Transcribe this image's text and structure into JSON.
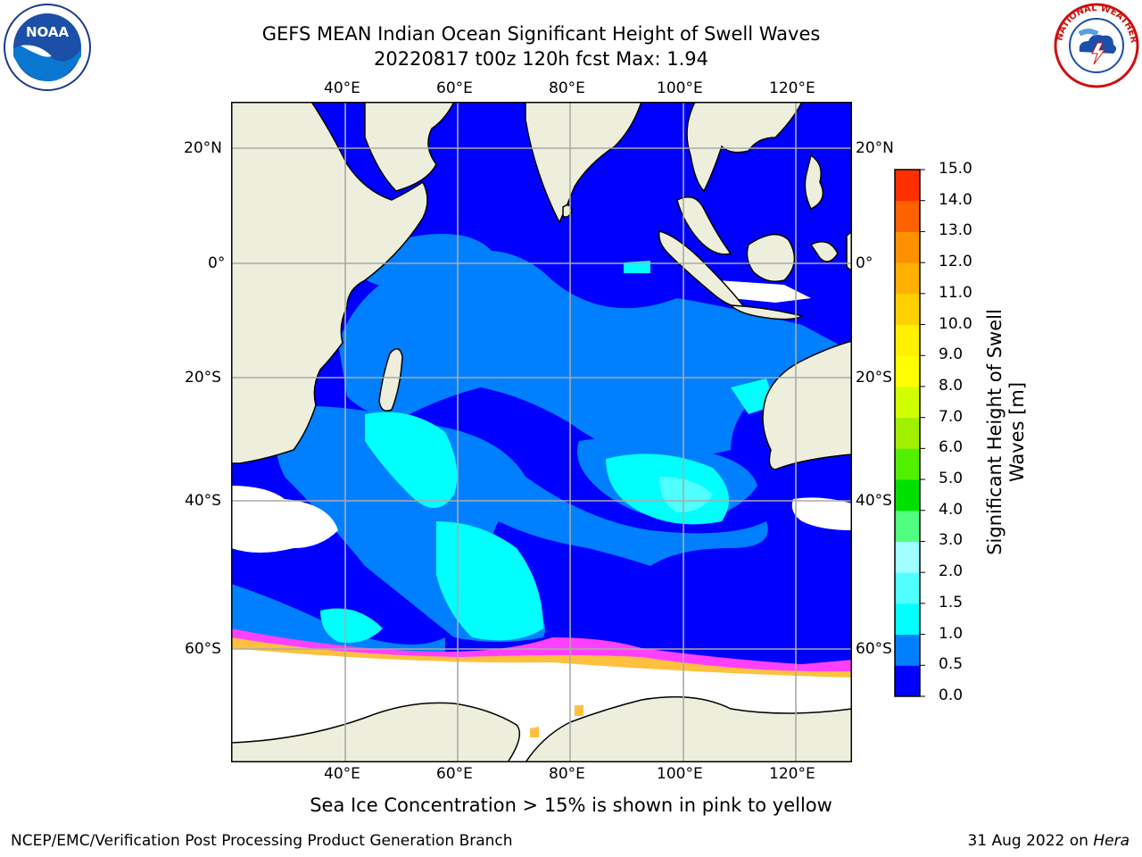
{
  "title": {
    "line1": "GEFS MEAN Indian Ocean Significant Height of Swell Waves",
    "line2": "20220817 t00z 120h fcst   Max: 1.94"
  },
  "axes": {
    "top_lon_ticks": [
      "40°E",
      "60°E",
      "80°E",
      "100°E",
      "120°E"
    ],
    "bottom_lon_ticks": [
      "40°E",
      "60°E",
      "80°E",
      "100°E",
      "120°E"
    ],
    "left_lat_ticks": [
      "20°N",
      "0°",
      "20°S",
      "40°S",
      "60°S"
    ],
    "right_lat_ticks": [
      "20°N",
      "0°",
      "20°S",
      "40°S",
      "60°S"
    ]
  },
  "colorbar": {
    "label_line1": "Significant Height of Swell",
    "label_line2": "Waves [m]",
    "ticks": [
      "0.0",
      "0.5",
      "1.0",
      "1.5",
      "2.0",
      "3.0",
      "4.0",
      "5.0",
      "6.0",
      "7.0",
      "8.0",
      "9.0",
      "10.0",
      "11.0",
      "12.0",
      "13.0",
      "14.0",
      "15.0"
    ],
    "colors": [
      "#0000ff",
      "#0080ff",
      "#00ffff",
      "#50ffff",
      "#a0ffff",
      "#50ff80",
      "#00e000",
      "#50f000",
      "#a0f000",
      "#d0ff00",
      "#ffff00",
      "#fff000",
      "#ffd000",
      "#ffb000",
      "#ff9000",
      "#ff6000",
      "#ff3000",
      "#ff0000"
    ]
  },
  "map_colors": {
    "ocean_deep": "#0000ff",
    "ocean_mid": "#0080ff",
    "ocean_high": "#00ffff",
    "land": "#eeeedc",
    "ice_pink": "#ff40ff",
    "ice_yellow": "#ffc040"
  },
  "logos": {
    "left": "NOAA",
    "right": "NATIONAL WEATHER SERVICE"
  },
  "footer": {
    "note": "Sea Ice Concentration > 15% is shown in pink to yellow",
    "credit": "NCEP/EMC/Verification Post Processing Product Generation Branch",
    "date": "31 Aug 2022 on ",
    "machine": "Hera"
  }
}
